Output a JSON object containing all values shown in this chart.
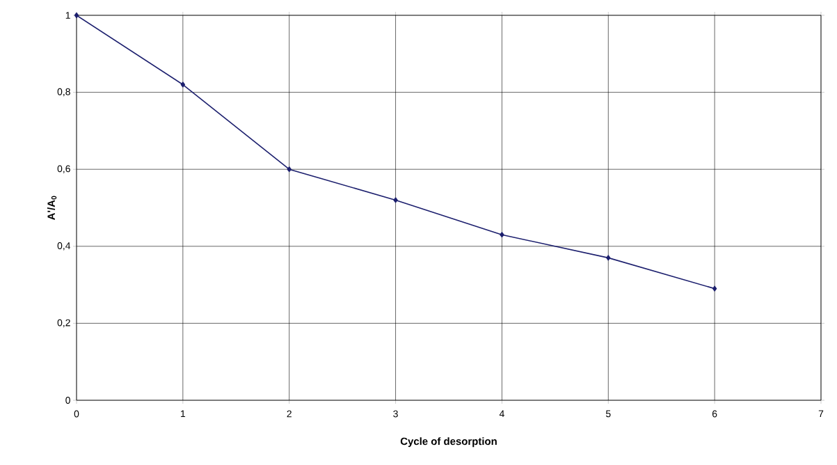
{
  "chart_data": {
    "type": "line",
    "xlabel": "Cycle of desorption",
    "ylabel": "A'/A$_{0}$",
    "x": [
      0,
      1,
      2,
      3,
      4,
      5,
      6
    ],
    "series": [
      {
        "color": "#1c1f6e",
        "values": [
          1,
          0.82,
          0.6,
          0.52,
          0.43,
          0.37,
          0.29
        ]
      }
    ],
    "xlim": [
      0,
      7
    ],
    "xticks": [
      0,
      1,
      2,
      3,
      4,
      5,
      6,
      7
    ],
    "ylim": [
      0,
      1
    ],
    "yticks": [
      0,
      {
        "value": 0.2,
        "label": "0,2"
      },
      {
        "value": 0.4,
        "label": "0,4"
      },
      {
        "value": 0.6,
        "label": "0,6"
      },
      {
        "value": 0.8,
        "label": "0,8"
      },
      1
    ],
    "grid": true,
    "marker": "diamond",
    "line_style": "solid"
  }
}
